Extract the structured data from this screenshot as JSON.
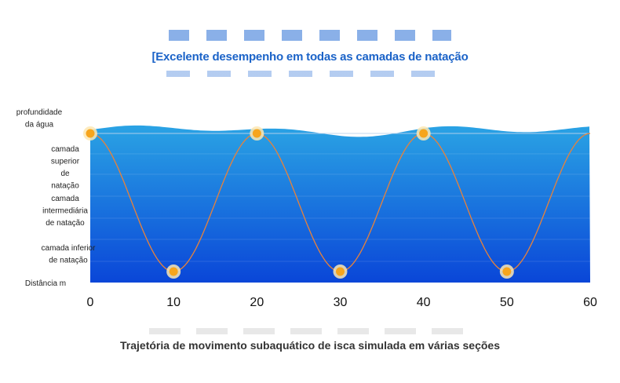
{
  "chart_data": {
    "type": "line",
    "subtitle": "[Excelente desempenho em todas as camadas de natação",
    "xlabel": "Distância m",
    "ylabel": "profundidade da água",
    "x_ticks": [
      "0",
      "10",
      "20",
      "30",
      "40",
      "50",
      "60"
    ],
    "xlim": [
      0,
      60
    ],
    "y_categories": [
      "camada superior de natação",
      "camada intermediária de natação",
      "camada inferior de natação"
    ],
    "series": [
      {
        "points": [
          {
            "x": 0,
            "y": "camada superior de natação"
          },
          {
            "x": 10,
            "y": "camada inferior de natação"
          },
          {
            "x": 20,
            "y": "camada superior de natação"
          },
          {
            "x": 30,
            "y": "camada inferior de natação"
          },
          {
            "x": 40,
            "y": "camada superior de natação"
          },
          {
            "x": 50,
            "y": "camada inferior de natação"
          },
          {
            "x": 60,
            "y": "camada superior de natação"
          }
        ]
      }
    ],
    "caption": "Trajetória de movimento subaquático de isca simulada em várias seções",
    "colors": {
      "water_top": "#2aa3e4",
      "water_bottom": "#0a46d8",
      "line": "#e8823a",
      "marker": "#f7a51c",
      "subtitle": "#1b63c8"
    }
  }
}
